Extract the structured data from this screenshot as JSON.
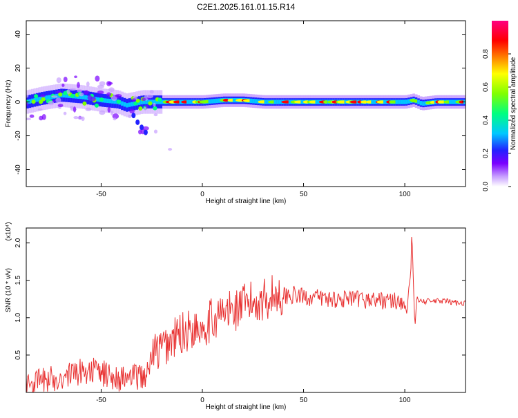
{
  "title": "C2E1.2025.161.01.15.R14",
  "chart_data": [
    {
      "type": "heatmap",
      "xlabel": "Height of straight line (km)",
      "ylabel": "Frequency (Hz)",
      "xlim": [
        -87,
        130
      ],
      "ylim": [
        -50,
        48
      ],
      "xticks": [
        -50,
        0,
        50,
        100
      ],
      "yticks": [
        40,
        20,
        0,
        -20,
        -40
      ],
      "xtick_labels": [
        "-50",
        "0",
        "50",
        "100"
      ],
      "ytick_labels": [
        "40",
        "20",
        "0",
        "-20",
        "-40"
      ],
      "colorbar": {
        "label": "Normalized spectral amplitude",
        "range": [
          0.0,
          1.0
        ],
        "ticks": [
          0.0,
          0.2,
          0.4,
          0.6,
          0.8
        ],
        "tick_labels": [
          "0.0",
          "0.2",
          "0.4",
          "0.6",
          "0.8"
        ],
        "colors": [
          "#ffffff",
          "#c8a0ff",
          "#7a00ff",
          "#2222ff",
          "#00c8ff",
          "#00ff80",
          "#80ff00",
          "#ffff00",
          "#ff8000",
          "#ff0000",
          "#ff0080"
        ]
      },
      "trace": {
        "x": [
          -87,
          -80,
          -70,
          -60,
          -50,
          -42,
          -38,
          -34,
          -30,
          -20,
          -10,
          0,
          10,
          20,
          30,
          40,
          50,
          60,
          70,
          80,
          90,
          100,
          104,
          108,
          115,
          130
        ],
        "y": [
          0,
          2,
          4,
          3,
          1,
          0,
          -2,
          -1,
          0,
          0,
          0,
          0,
          1,
          1,
          0,
          0,
          0,
          0,
          0,
          0,
          0,
          0,
          1,
          -1,
          0,
          0
        ]
      }
    },
    {
      "type": "line",
      "xlabel": "Height of straight line (km)",
      "ylabel": "SNR (10 * v/v)",
      "y_multiplier": "(x10⁴)",
      "xlim": [
        -87,
        130
      ],
      "ylim": [
        0,
        2.2
      ],
      "xticks": [
        -50,
        0,
        50,
        100
      ],
      "yticks": [
        0.5,
        1.0,
        1.5,
        2.0
      ],
      "xtick_labels": [
        "-50",
        "0",
        "50",
        "100"
      ],
      "ytick_labels": [
        "0.5",
        "1.0",
        "1.5",
        "2.0"
      ],
      "series": [
        {
          "color": "#e83030",
          "x": [
            -87,
            -80,
            -70,
            -60,
            -55,
            -50,
            -45,
            -40,
            -35,
            -30,
            -27,
            -25,
            -20,
            -15,
            -10,
            -5,
            0,
            5,
            10,
            15,
            20,
            25,
            30,
            35,
            40,
            45,
            50,
            55,
            60,
            65,
            70,
            75,
            80,
            85,
            90,
            95,
            98,
            100,
            101,
            102,
            103,
            103.5,
            104,
            105,
            106,
            107,
            108,
            110,
            115,
            120,
            125,
            130
          ],
          "values": [
            0.1,
            0.15,
            0.2,
            0.28,
            0.3,
            0.26,
            0.22,
            0.18,
            0.2,
            0.22,
            0.24,
            0.5,
            0.58,
            0.7,
            0.8,
            0.85,
            0.9,
            0.98,
            1.05,
            1.1,
            1.15,
            1.2,
            1.25,
            1.3,
            1.3,
            1.3,
            1.28,
            1.27,
            1.26,
            1.25,
            1.25,
            1.24,
            1.24,
            1.24,
            1.23,
            1.22,
            1.22,
            1.2,
            1.05,
            1.4,
            1.6,
            2.2,
            1.7,
            0.85,
            1.3,
            1.2,
            1.25,
            1.22,
            1.22,
            1.22,
            1.2,
            1.2
          ]
        }
      ]
    }
  ]
}
